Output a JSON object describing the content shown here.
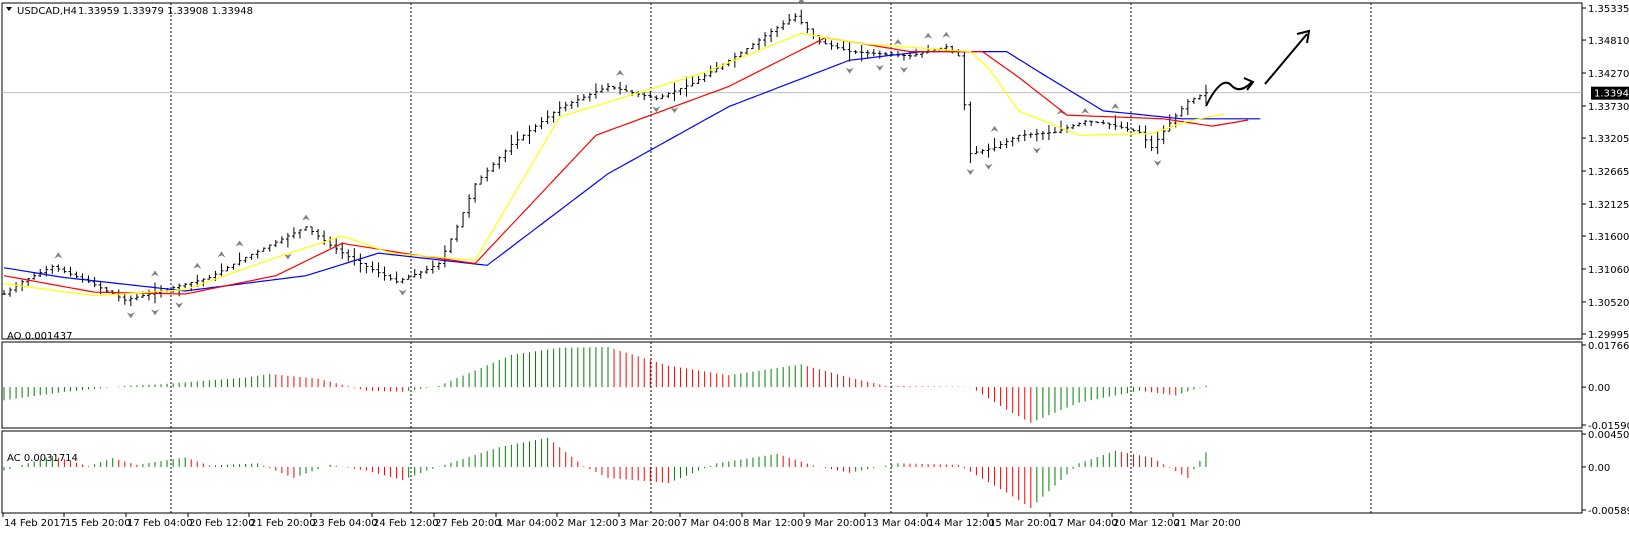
{
  "header": {
    "symbol_label": "USDCAD,H4",
    "quote_values": "1.33959 1.33979 1.33908 1.33948"
  },
  "colors": {
    "background": "#ffffff",
    "grid": "#000000",
    "bar": "#000000",
    "alligator_jaw": "#0000ff",
    "alligator_teeth": "#ff0000",
    "alligator_lips": "#ffff00",
    "fractal": "#808080",
    "osc_up": "#008000",
    "osc_down": "#ff0000",
    "price_tag_bg": "#000000",
    "price_tag_fg": "#ffffff"
  },
  "chart_data": [
    {
      "type": "candlestick",
      "title": "USDCAD,H4",
      "ohlc_label": "1.33959 1.33979 1.33908 1.33948",
      "y_tick_labels": [
        "1.35335",
        "1.34810",
        "1.34270",
        "1.33730",
        "1.33205",
        "1.32665",
        "1.32125",
        "1.31600",
        "1.31060",
        "1.30520",
        "1.29995"
      ],
      "ylim": [
        1.29995,
        1.35335
      ],
      "current_price": 1.33948,
      "current_price_label": "1.33948",
      "x_tick_labels": [
        "14 Feb 2017",
        "15 Feb 20:00",
        "17 Feb 04:00",
        "20 Feb 12:00",
        "21 Feb 20:00",
        "23 Feb 04:00",
        "24 Feb 12:00",
        "27 Feb 20:00",
        "1 Mar 04:00",
        "2 Mar 12:00",
        "3 Mar 20:00",
        "7 Mar 04:00",
        "8 Mar 12:00",
        "9 Mar 20:00",
        "13 Mar 04:00",
        "14 Mar 12:00",
        "15 Mar 20:00",
        "17 Mar 04:00",
        "20 Mar 12:00",
        "21 Mar 20:00"
      ],
      "grid": "dotted vertical lines",
      "bar_count": 200,
      "close_anchors": [
        [
          0,
          1.3065
        ],
        [
          3,
          1.3085
        ],
        [
          8,
          1.311
        ],
        [
          14,
          1.3085
        ],
        [
          20,
          1.3055
        ],
        [
          26,
          1.307
        ],
        [
          34,
          1.3092
        ],
        [
          40,
          1.3125
        ],
        [
          46,
          1.3155
        ],
        [
          50,
          1.3175
        ],
        [
          54,
          1.3145
        ],
        [
          58,
          1.312
        ],
        [
          62,
          1.31
        ],
        [
          65,
          1.3085
        ],
        [
          70,
          1.3105
        ],
        [
          72,
          1.3115
        ],
        [
          75,
          1.3175
        ],
        [
          78,
          1.3245
        ],
        [
          84,
          1.331
        ],
        [
          92,
          1.337
        ],
        [
          100,
          1.3405
        ],
        [
          108,
          1.3385
        ],
        [
          114,
          1.341
        ],
        [
          122,
          1.346
        ],
        [
          127,
          1.3495
        ],
        [
          131,
          1.352
        ],
        [
          135,
          1.3478
        ],
        [
          140,
          1.3462
        ],
        [
          150,
          1.3455
        ],
        [
          156,
          1.347
        ],
        [
          158,
          1.3455
        ],
        [
          160,
          1.3295
        ],
        [
          164,
          1.3305
        ],
        [
          168,
          1.3325
        ],
        [
          174,
          1.333
        ],
        [
          179,
          1.3348
        ],
        [
          182,
          1.3345
        ],
        [
          188,
          1.333
        ],
        [
          190,
          1.3305
        ],
        [
          193,
          1.3345
        ],
        [
          196,
          1.338
        ],
        [
          199,
          1.33948
        ]
      ],
      "alligator": [
        {
          "name": "Jaw",
          "color": "#0000ff",
          "points": [
            [
              0,
              1.3108
            ],
            [
              10,
              1.3092
            ],
            [
              30,
              1.307
            ],
            [
              50,
              1.3095
            ],
            [
              62,
              1.3132
            ],
            [
              80,
              1.3112
            ],
            [
              100,
              1.3262
            ],
            [
              120,
              1.3372
            ],
            [
              140,
              1.3448
            ],
            [
              152,
              1.3462
            ],
            [
              166,
              1.3462
            ],
            [
              172,
              1.3425
            ],
            [
              182,
              1.3365
            ],
            [
              195,
              1.3352
            ],
            [
              208,
              1.3352
            ]
          ]
        },
        {
          "name": "Teeth",
          "color": "#ff0000",
          "points": [
            [
              0,
              1.3095
            ],
            [
              15,
              1.3068
            ],
            [
              30,
              1.3065
            ],
            [
              45,
              1.3095
            ],
            [
              56,
              1.3148
            ],
            [
              66,
              1.3132
            ],
            [
              78,
              1.3115
            ],
            [
              98,
              1.3325
            ],
            [
              120,
              1.3405
            ],
            [
              136,
              1.3485
            ],
            [
              150,
              1.3462
            ],
            [
              162,
              1.3462
            ],
            [
              168,
              1.342
            ],
            [
              176,
              1.3358
            ],
            [
              192,
              1.3352
            ],
            [
              200,
              1.334
            ],
            [
              206,
              1.335
            ]
          ]
        },
        {
          "name": "Lips",
          "color": "#ffff00",
          "points": [
            [
              0,
              1.3082
            ],
            [
              15,
              1.3062
            ],
            [
              30,
              1.3072
            ],
            [
              46,
              1.3128
            ],
            [
              56,
              1.316
            ],
            [
              64,
              1.3132
            ],
            [
              78,
              1.312
            ],
            [
              92,
              1.3355
            ],
            [
              116,
              1.3428
            ],
            [
              132,
              1.3492
            ],
            [
              142,
              1.3475
            ],
            [
              160,
              1.3462
            ],
            [
              163,
              1.3435
            ],
            [
              168,
              1.3365
            ],
            [
              178,
              1.3325
            ],
            [
              190,
              1.3328
            ],
            [
              196,
              1.3348
            ],
            [
              202,
              1.336
            ]
          ]
        }
      ]
    },
    {
      "type": "bar",
      "title": "AO 0.001437",
      "indicator": "AO",
      "current_value": 0.001437,
      "y_tick_labels": [
        "0.017664",
        "0.00",
        "-0.015906"
      ],
      "ylim": [
        -0.015906,
        0.017664
      ],
      "bar_count": 200,
      "value_anchors": [
        [
          0,
          -0.0055
        ],
        [
          10,
          -0.002
        ],
        [
          20,
          0.0005
        ],
        [
          26,
          0.0012
        ],
        [
          40,
          0.004
        ],
        [
          44,
          0.0055
        ],
        [
          52,
          0.0035
        ],
        [
          60,
          -0.0015
        ],
        [
          66,
          -0.002
        ],
        [
          72,
          0.0005
        ],
        [
          84,
          0.0135
        ],
        [
          92,
          0.0165
        ],
        [
          100,
          0.0168
        ],
        [
          110,
          0.009
        ],
        [
          120,
          0.005
        ],
        [
          132,
          0.0095
        ],
        [
          140,
          0.004
        ],
        [
          146,
          0.0005
        ],
        [
          160,
          0.0001
        ],
        [
          166,
          -0.0095
        ],
        [
          170,
          -0.015
        ],
        [
          178,
          -0.0065
        ],
        [
          188,
          -0.0015
        ],
        [
          194,
          -0.0035
        ],
        [
          200,
          0.001437
        ]
      ]
    },
    {
      "type": "bar",
      "title": "AC 0.0031714",
      "indicator": "AC",
      "current_value": 0.0031714,
      "y_tick_labels": [
        "0.004509",
        "0.00",
        "-0.005890"
      ],
      "ylim": [
        -0.00589,
        0.004509
      ],
      "bar_count": 200,
      "value_anchors": [
        [
          0,
          -0.0005
        ],
        [
          8,
          0.0015
        ],
        [
          14,
          0.0001
        ],
        [
          18,
          0.0012
        ],
        [
          22,
          0.0003
        ],
        [
          30,
          0.0013
        ],
        [
          34,
          0.0002
        ],
        [
          42,
          0.0005
        ],
        [
          48,
          -0.0015
        ],
        [
          54,
          0.0003
        ],
        [
          60,
          -0.0005
        ],
        [
          66,
          -0.0018
        ],
        [
          70,
          -0.0005
        ],
        [
          82,
          0.0027
        ],
        [
          90,
          0.004
        ],
        [
          96,
          0.0001
        ],
        [
          100,
          -0.0015
        ],
        [
          110,
          -0.0022
        ],
        [
          118,
          0.0005
        ],
        [
          128,
          0.0018
        ],
        [
          134,
          0.0002
        ],
        [
          140,
          -0.0008
        ],
        [
          148,
          0.0005
        ],
        [
          158,
          0.0003
        ],
        [
          166,
          -0.0035
        ],
        [
          170,
          -0.0056
        ],
        [
          178,
          0.0005
        ],
        [
          184,
          0.0022
        ],
        [
          190,
          0.0013
        ],
        [
          196,
          -0.0015
        ],
        [
          200,
          0.0031714
        ]
      ]
    }
  ]
}
